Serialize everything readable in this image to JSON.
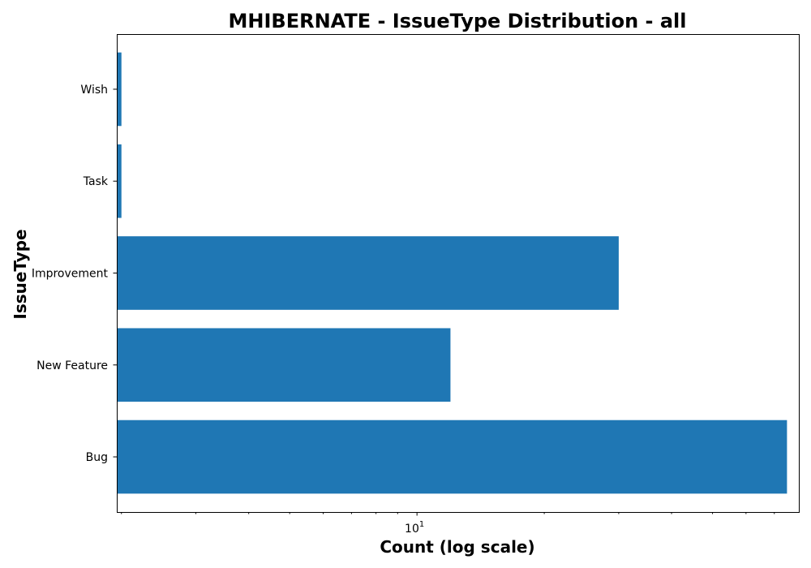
{
  "chart_data": {
    "type": "bar",
    "orientation": "horizontal",
    "title": "MHIBERNATE - IssueType Distribution - all",
    "xlabel": "Count (log scale)",
    "ylabel": "IssueType",
    "x_scale": "log",
    "xlim": [
      1.95,
      80
    ],
    "categories": [
      "Bug",
      "New Feature",
      "Improvement",
      "Task",
      "Wish"
    ],
    "values": [
      75,
      12,
      30,
      2,
      2
    ],
    "major_ticks": [
      {
        "base": "10",
        "exponent": "1",
        "value": 10
      }
    ],
    "minor_ticks": [
      2,
      3,
      4,
      5,
      6,
      7,
      8,
      9,
      20,
      30,
      40,
      50,
      60,
      70
    ],
    "bar_color": "#1f77b4",
    "grid": false,
    "legend": "none"
  }
}
